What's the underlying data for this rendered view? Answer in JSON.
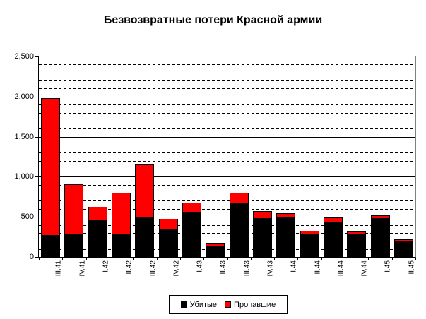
{
  "chart_data": {
    "type": "bar",
    "stacked": true,
    "title": "Безвозвратные потери Красной армии",
    "categories": [
      "III.41",
      "IV.41",
      "I.42",
      "II.42",
      "III.42",
      "IV.42",
      "I.43",
      "II.43",
      "III.43",
      "IV.43",
      "I.44",
      "II.44",
      "III.44",
      "IV.44",
      "I.45",
      "II.45"
    ],
    "series": [
      {
        "key": "killed",
        "name": "Убитые",
        "color": "#000000",
        "values": [
          265,
          280,
          445,
          270,
          480,
          345,
          545,
          130,
          660,
          475,
          495,
          280,
          435,
          270,
          475,
          185
        ]
      },
      {
        "key": "missing",
        "name": "Пропавшие",
        "color": "#FF0000",
        "values": [
          1720,
          630,
          180,
          530,
          675,
          130,
          130,
          40,
          140,
          95,
          50,
          45,
          55,
          45,
          45,
          35
        ]
      }
    ],
    "xlabel": "",
    "ylabel": "",
    "ylim": [
      0,
      2500
    ],
    "y_major_step": 500,
    "y_minor_step": 100,
    "y_tick_labels": [
      "0",
      "500",
      "1,000",
      "1,500",
      "2,000",
      "2,500"
    ],
    "grid": "horizontal; solid black line every 500, dashed black line every 100",
    "legend_position": "bottom-center"
  },
  "colors": {
    "killed": "#000000",
    "missing": "#FF0000",
    "gridline": "#000000",
    "plot_border": "#808080",
    "background": "#FFFFFF",
    "text": "#000000"
  }
}
